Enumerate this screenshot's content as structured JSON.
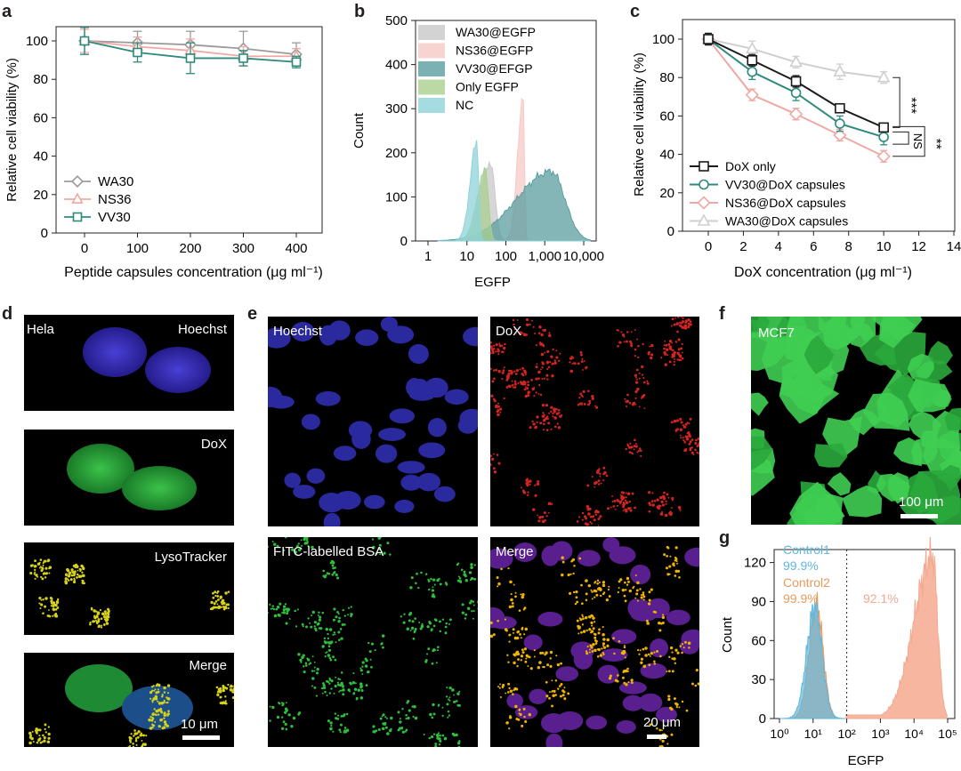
{
  "panel_labels": {
    "a": "a",
    "b": "b",
    "c": "c",
    "d": "d",
    "e": "e",
    "f": "f",
    "g": "g"
  },
  "colors": {
    "wa30": "#9b9b9b",
    "ns36": "#f0a8a4",
    "vv30": "#2e8b7b",
    "dox_only": "#1a1a1a",
    "wa30_dox": "#cfcfcf"
  },
  "chart_data": [
    {
      "id": "a",
      "type": "line",
      "title": "",
      "xlabel": "Peptide capsules concentration (μg ml⁻¹)",
      "ylabel": "Relative cell viability (%)",
      "x": [
        0,
        100,
        200,
        300,
        400
      ],
      "xticks": [
        "0",
        "100",
        "200",
        "300",
        "400"
      ],
      "yticks": [
        "0",
        "20",
        "40",
        "60",
        "80",
        "100"
      ],
      "ylim": [
        0,
        110
      ],
      "series": [
        {
          "name": "WA30",
          "values": [
            100,
            99,
            98,
            96,
            93
          ],
          "errors": [
            7,
            6,
            7,
            9,
            6
          ],
          "marker": "diamond",
          "color": "#9b9b9b"
        },
        {
          "name": "NS36",
          "values": [
            100,
            97,
            95,
            92,
            92
          ],
          "errors": [
            6,
            5,
            6,
            5,
            4
          ],
          "marker": "triangle",
          "color": "#f0a8a4"
        },
        {
          "name": "VV30",
          "values": [
            100,
            94,
            91,
            91,
            89
          ],
          "errors": [
            7,
            5,
            8,
            4,
            3
          ],
          "marker": "square",
          "color": "#2e8b7b"
        }
      ]
    },
    {
      "id": "b",
      "type": "area",
      "xlabel": "EGFP",
      "ylabel": "Count",
      "xticks": [
        "1",
        "10",
        "100",
        "1,000",
        "10,000"
      ],
      "yticks": [
        "0",
        "100",
        "200",
        "300",
        "400",
        "500"
      ],
      "ylim": [
        0,
        500
      ],
      "series": [
        {
          "name": "WA30@EGFP",
          "color": "#c8c8c8",
          "peak_x": 40,
          "peak_count": 178
        },
        {
          "name": "NS36@EGFP",
          "color": "#f6c9c6",
          "peak_x": 280,
          "peak_count": 335
        },
        {
          "name": "VV30@EFGP",
          "color": "#5b9ea0",
          "peak_x": 1500,
          "peak_count": 158
        },
        {
          "name": "Only EGFP",
          "color": "#a9cf8f",
          "peak_x": 30,
          "peak_count": 160
        },
        {
          "name": "NC",
          "color": "#8fd3da",
          "peak_x": 18,
          "peak_count": 225
        }
      ]
    },
    {
      "id": "c",
      "type": "line",
      "xlabel": "DoX concentration (μg ml⁻¹)",
      "ylabel": "Relative cell viability (%)",
      "x": [
        0,
        2.5,
        5,
        7.5,
        10
      ],
      "xticks": [
        "0",
        "2",
        "4",
        "6",
        "8",
        "10",
        "12",
        "14"
      ],
      "yticks": [
        "0",
        "20",
        "40",
        "60",
        "80",
        "100"
      ],
      "ylim": [
        0,
        105
      ],
      "xlim": [
        -1,
        14
      ],
      "series": [
        {
          "name": "DoX only",
          "values": [
            100,
            89,
            78,
            64,
            54
          ],
          "errors": [
            3,
            3,
            3,
            2,
            2
          ],
          "marker": "square",
          "color": "#1a1a1a"
        },
        {
          "name": "VV30@DoX capsules",
          "values": [
            100,
            83,
            72,
            56,
            49
          ],
          "errors": [
            3,
            4,
            4,
            4,
            4
          ],
          "marker": "circle",
          "color": "#2e8b7b"
        },
        {
          "name": "NS36@DoX capsules",
          "values": [
            100,
            71,
            61,
            50,
            39
          ],
          "errors": [
            3,
            3,
            3,
            3,
            3
          ],
          "marker": "diamond",
          "color": "#f0a8a4"
        },
        {
          "name": "WA30@DoX capsules",
          "values": [
            100,
            95,
            88,
            83,
            80
          ],
          "errors": [
            3,
            4,
            3,
            4,
            3
          ],
          "marker": "triangle",
          "color": "#cfcfcf"
        }
      ],
      "annotations": [
        "***",
        "NS",
        "**"
      ]
    },
    {
      "id": "g",
      "type": "area",
      "xlabel": "EGFP",
      "ylabel": "Count",
      "xticks": [
        "10⁰",
        "10¹",
        "10²",
        "10³",
        "10⁴",
        "10⁵"
      ],
      "yticks": [
        "0",
        "30",
        "60",
        "90",
        "120"
      ],
      "ylim": [
        0,
        130
      ],
      "annotations": [
        {
          "label": "Control1",
          "value": "99.9%",
          "color": "#5fb8e0"
        },
        {
          "label": "Control2",
          "value": "99.9%",
          "color": "#e89a5c"
        },
        {
          "label": "",
          "value": "92.1%",
          "color": "#f4a98f"
        }
      ],
      "gate_at": 100
    }
  ],
  "micrographs": {
    "d": [
      {
        "cell": "Hela",
        "stain": "Hoechst"
      },
      {
        "stain": "DoX"
      },
      {
        "stain": "LysoTracker"
      },
      {
        "stain": "Merge",
        "scale": "10 μm"
      }
    ],
    "e": [
      {
        "stain": "Hoechst"
      },
      {
        "stain": "DoX"
      },
      {
        "stain": "FITC-labelled BSA"
      },
      {
        "stain": "Merge",
        "scale": "20 μm"
      }
    ],
    "f": {
      "cell": "MCF7",
      "scale": "100 μm"
    }
  }
}
